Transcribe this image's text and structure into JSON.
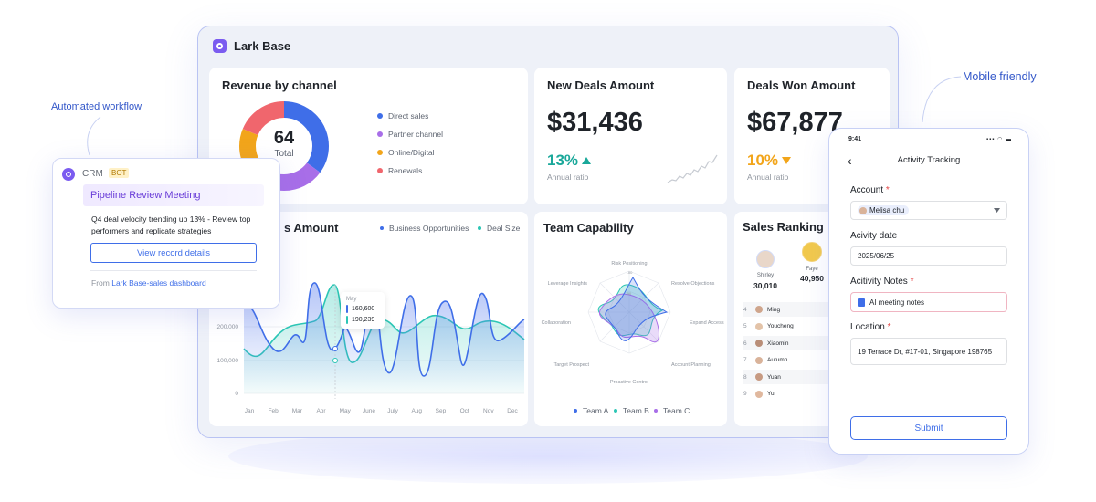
{
  "colors": {
    "blue": "#3f6ee8",
    "purple": "#a86ee8",
    "orange": "#f2a51a",
    "red": "#f0666d",
    "teal": "#2cc6b5",
    "brand": "#7b5cf0"
  },
  "callouts": {
    "automated": "Automated workflow",
    "mobile": "Mobile friendly"
  },
  "app": {
    "title": "Lark Base"
  },
  "revenue": {
    "title": "Revenue by channel",
    "total": "64",
    "total_label": "Total",
    "legend": [
      "Direct sales",
      "Partner channel",
      "Online/Digital",
      "Renewals"
    ]
  },
  "new_deals": {
    "title": "New Deals Amount",
    "value": "$31,436",
    "pct": "13%",
    "ratio": "Annual ratio"
  },
  "deals_won": {
    "title": "Deals Won Amount",
    "value": "$67,877",
    "pct": "10%",
    "ratio": "Annual ratio"
  },
  "amount_chart": {
    "title": "s Amount",
    "legend": [
      "Business Opportunities",
      "Deal Size"
    ],
    "y_ticks": [
      "200,000",
      "100,000",
      "0"
    ],
    "months": [
      "Jan",
      "Feb",
      "Mar",
      "Apr",
      "May",
      "June",
      "July",
      "Aug",
      "Sep",
      "Oct",
      "Nov",
      "Dec"
    ],
    "tooltip": {
      "month": "May",
      "v1": "160,600",
      "v2": "190,239"
    }
  },
  "team": {
    "title": "Team Capability",
    "axes": [
      "Risk Positioning",
      "Resolve Objections",
      "Expand Access",
      "Account Planning",
      "Proactive Control",
      "Target Prospect",
      "Collaboration",
      "Leverage Insights"
    ],
    "scale": [
      "100",
      "50"
    ],
    "legend": [
      "Team A",
      "Team B",
      "Team C"
    ]
  },
  "ranking": {
    "title": "Sales Ranking",
    "top": [
      {
        "name": "Shirley",
        "value": "30,010"
      },
      {
        "name": "Faye",
        "value": "40,950"
      }
    ],
    "rows": [
      {
        "no": "4",
        "name": "Ming"
      },
      {
        "no": "5",
        "name": "Youcheng"
      },
      {
        "no": "6",
        "name": "Xiaomin"
      },
      {
        "no": "7",
        "name": "Autumn"
      },
      {
        "no": "8",
        "name": "Yuan"
      },
      {
        "no": "9",
        "name": "Yu"
      }
    ]
  },
  "crm": {
    "name": "CRM",
    "badge": "BOT",
    "heading": "Pipeline Review Meeting",
    "body": "Q4 deal velocity trending up 13% - Review top performers and replicate strategies",
    "button": "View record details",
    "from_prefix": "From",
    "from_link": "Lark Base-sales dashboard"
  },
  "phone": {
    "time": "9:41",
    "status": "▪▪▪ ◠ ▬",
    "title": "Activity Tracking",
    "account_label": "Account",
    "account_value": "Melisa chu",
    "date_label": "Acivity date",
    "date_value": "2025/06/25",
    "notes_label": "Acitivity Notes",
    "notes_value": "AI meeting notes",
    "location_label": "Location",
    "location_value": "19 Terrace Dr, #17-01, Singapore 198765",
    "submit": "Submit"
  }
}
